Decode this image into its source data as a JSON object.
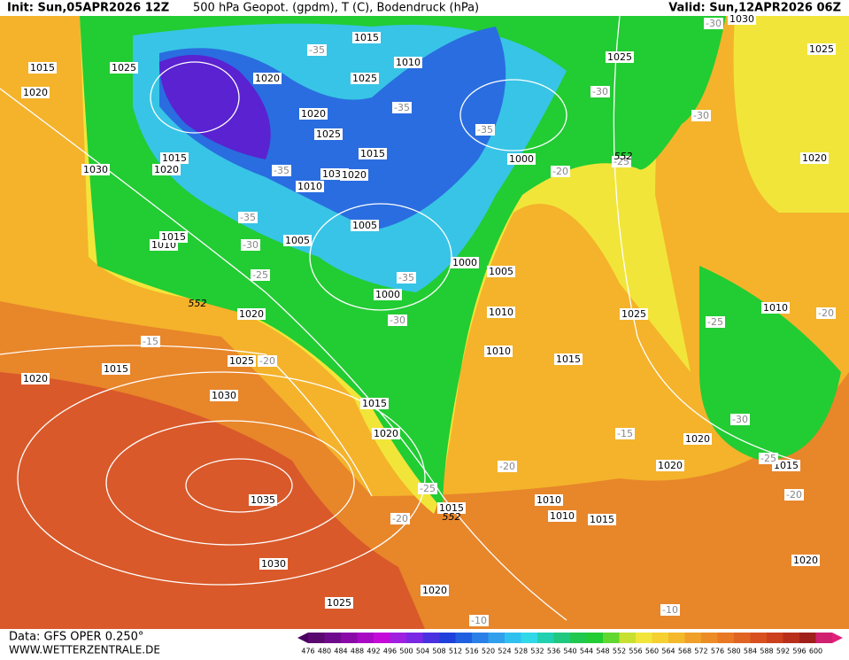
{
  "header": {
    "init": "Init: Sun,05APR2026 12Z",
    "title": "500 hPa Geopot. (gpdm), T (C), Bodendruck (hPa)",
    "valid": "Valid: Sun,12APR2026 06Z"
  },
  "footer": {
    "data": "Data: GFS OPER 0.250°",
    "site": "WWW.WETTERZENTRALE.DE"
  },
  "legend": {
    "labels": [
      476,
      480,
      484,
      488,
      492,
      496,
      500,
      504,
      508,
      512,
      516,
      520,
      524,
      528,
      532,
      536,
      540,
      544,
      548,
      552,
      556,
      560,
      564,
      568,
      572,
      576,
      580,
      584,
      588,
      592,
      596,
      600
    ]
  },
  "map": {
    "isobar_labels": [
      "1015",
      "1025",
      "1020",
      "1020",
      "1015",
      "1010",
      "1025",
      "1020",
      "1025",
      "1015",
      "1030",
      "1020",
      "1030",
      "1020",
      "1015",
      "1010",
      "1000",
      "1005",
      "1005",
      "1010",
      "1015",
      "1000",
      "1005",
      "1000",
      "1010",
      "1020",
      "1025",
      "1010",
      "1015",
      "1015",
      "1025",
      "1020",
      "1030",
      "1015",
      "1020",
      "1020",
      "1020",
      "1015",
      "1035",
      "1010",
      "1015",
      "1010",
      "1015",
      "1030",
      "1020",
      "1020",
      "1025",
      "1025",
      "1025",
      "1020",
      "1010",
      "1030"
    ],
    "temperature_labels": [
      "-35",
      "-35",
      "-35",
      "-30",
      "-30",
      "-30",
      "-25",
      "-20",
      "-35",
      "-30",
      "-25",
      "-35",
      "-30",
      "-15",
      "-20",
      "-25",
      "-20",
      "-30",
      "-15",
      "-20",
      "-25",
      "-20",
      "-25",
      "-20",
      "-10",
      "-10",
      "-35"
    ],
    "height_labels": [
      "552",
      "552",
      "552"
    ]
  }
}
